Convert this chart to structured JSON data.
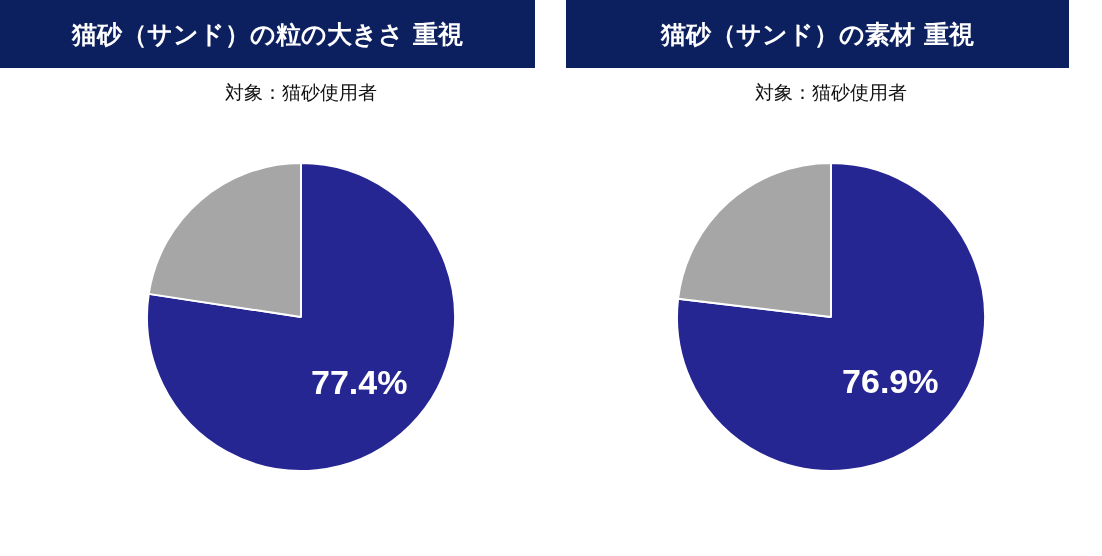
{
  "chart_data": [
    {
      "type": "pie",
      "title": "猫砂（サンド）の粒の大きさ 重視",
      "subtitle": "対象：猫砂使用者",
      "categories": [
        null,
        null
      ],
      "values": [
        77.4,
        22.6
      ],
      "colors": [
        "#262693",
        "#a6a6a6"
      ],
      "value_labels": [
        "77.4%",
        null
      ],
      "legend": false
    },
    {
      "type": "pie",
      "title": "猫砂（サンド）の素材 重視",
      "subtitle": "対象：猫砂使用者",
      "categories": [
        null,
        null
      ],
      "values": [
        76.9,
        23.1
      ],
      "colors": [
        "#262693",
        "#a6a6a6"
      ],
      "value_labels": [
        "76.9%",
        null
      ],
      "legend": false
    }
  ]
}
